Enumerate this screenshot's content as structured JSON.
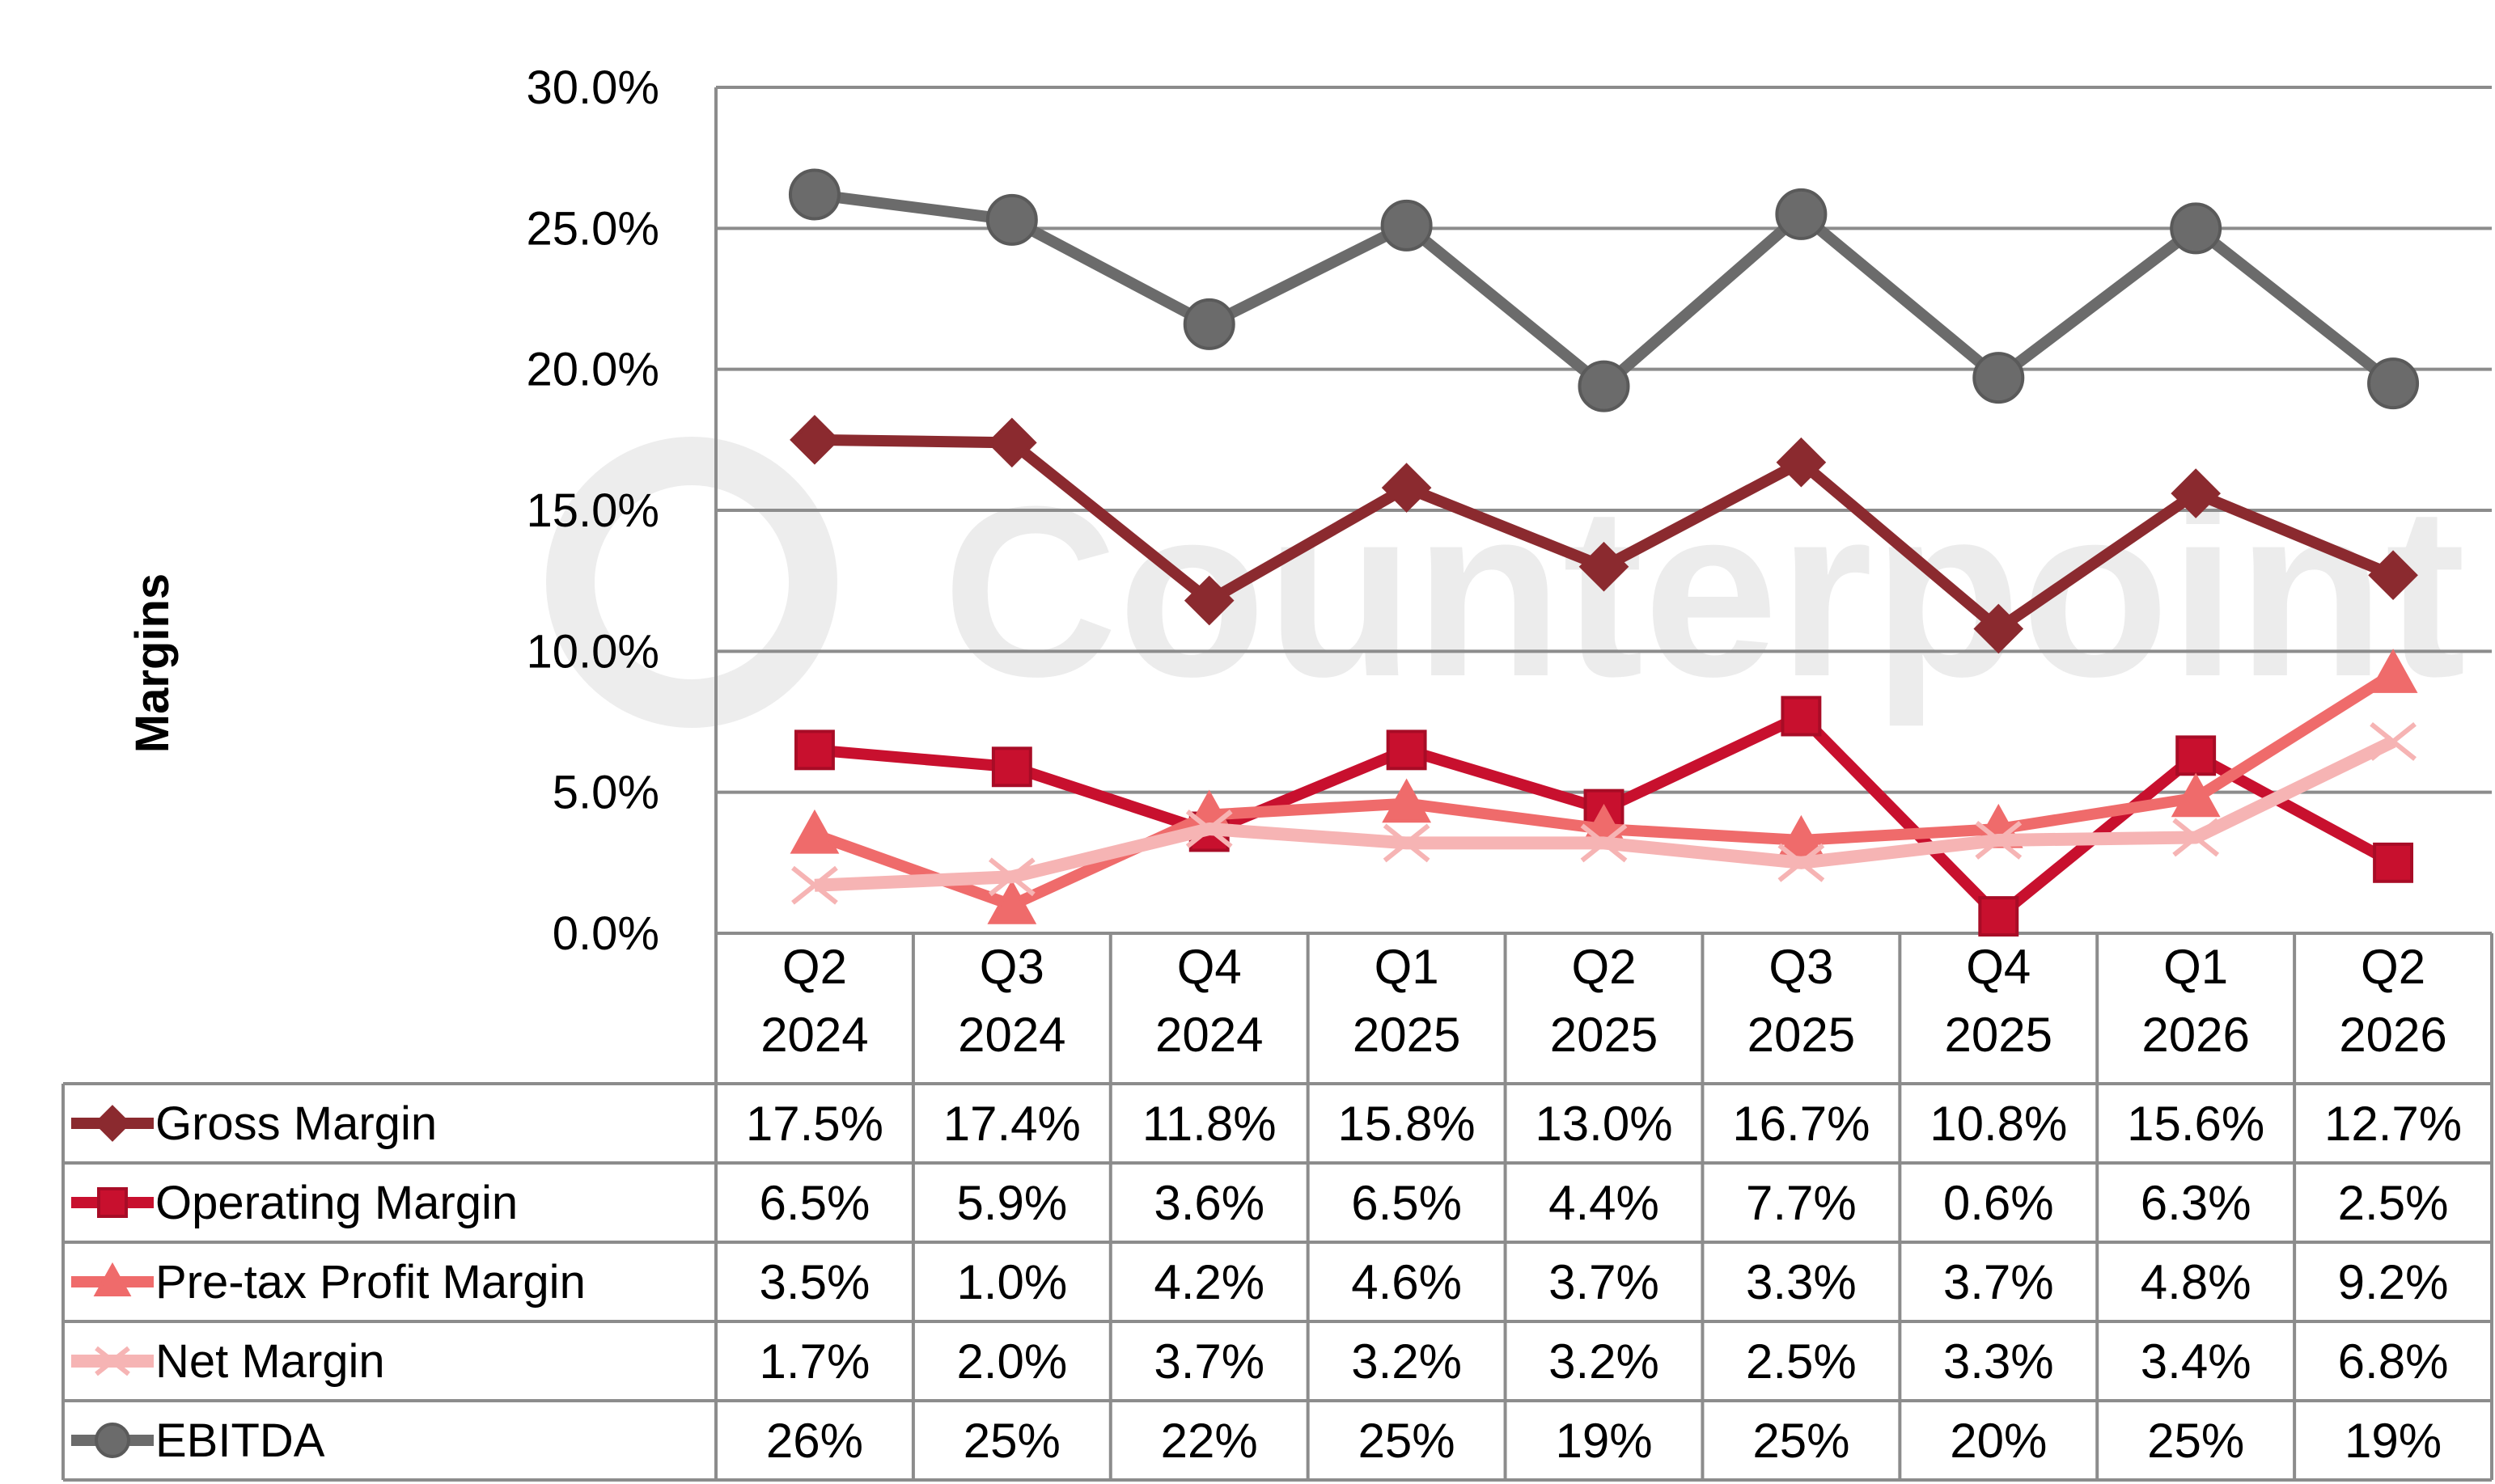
{
  "watermark": "Counterpoint",
  "chart_data": {
    "type": "line",
    "title": "",
    "ylabel": "Margins",
    "ylim": [
      0,
      30
    ],
    "y_ticks": [
      "0.0%",
      "5.0%",
      "10.0%",
      "15.0%",
      "20.0%",
      "25.0%",
      "30.0%"
    ],
    "y_tick_values": [
      0,
      5,
      10,
      15,
      20,
      25,
      30
    ],
    "grid": true,
    "legend_placement": "data-table-left",
    "categories": [
      [
        "Q2",
        "2024"
      ],
      [
        "Q3",
        "2024"
      ],
      [
        "Q4",
        "2024"
      ],
      [
        "Q1",
        "2025"
      ],
      [
        "Q2",
        "2025"
      ],
      [
        "Q3",
        "2025"
      ],
      [
        "Q4",
        "2025"
      ],
      [
        "Q1",
        "2026"
      ],
      [
        "Q2",
        "2026"
      ]
    ],
    "series": [
      {
        "name": "Gross Margin",
        "marker": "diamond",
        "color": "#8b2a2f",
        "values": [
          17.5,
          17.4,
          11.8,
          15.8,
          13.0,
          16.7,
          10.8,
          15.6,
          12.7
        ],
        "labels": [
          "17.5%",
          "17.4%",
          "11.8%",
          "15.8%",
          "13.0%",
          "16.7%",
          "10.8%",
          "15.6%",
          "12.7%"
        ]
      },
      {
        "name": "Operating Margin",
        "marker": "square",
        "color": "#c8102e",
        "values": [
          6.5,
          5.9,
          3.6,
          6.5,
          4.4,
          7.7,
          0.6,
          6.3,
          2.5
        ],
        "labels": [
          "6.5%",
          "5.9%",
          "3.6%",
          "6.5%",
          "4.4%",
          "7.7%",
          "0.6%",
          "6.3%",
          "2.5%"
        ]
      },
      {
        "name": "Pre-tax Profit Margin",
        "marker": "triangle",
        "color": "#ef6b6b",
        "values": [
          3.5,
          1.0,
          4.2,
          4.6,
          3.7,
          3.3,
          3.7,
          4.8,
          9.2
        ],
        "labels": [
          "3.5%",
          "1.0%",
          "4.2%",
          "4.6%",
          "3.7%",
          "3.3%",
          "3.7%",
          "4.8%",
          "9.2%"
        ]
      },
      {
        "name": "Net Margin",
        "marker": "x",
        "color": "#f6b4b4",
        "values": [
          1.7,
          2.0,
          3.7,
          3.2,
          3.2,
          2.5,
          3.3,
          3.4,
          6.8
        ],
        "labels": [
          "1.7%",
          "2.0%",
          "3.7%",
          "3.2%",
          "3.2%",
          "2.5%",
          "3.3%",
          "3.4%",
          "6.8%"
        ]
      },
      {
        "name": "EBITDA",
        "marker": "circle",
        "color": "#6b6b6b",
        "values": [
          26.2,
          25.3,
          21.6,
          25.1,
          19.4,
          25.5,
          19.7,
          25.0,
          19.5
        ],
        "labels": [
          "26%",
          "25%",
          "22%",
          "25%",
          "19%",
          "25%",
          "20%",
          "25%",
          "19%"
        ]
      }
    ]
  }
}
